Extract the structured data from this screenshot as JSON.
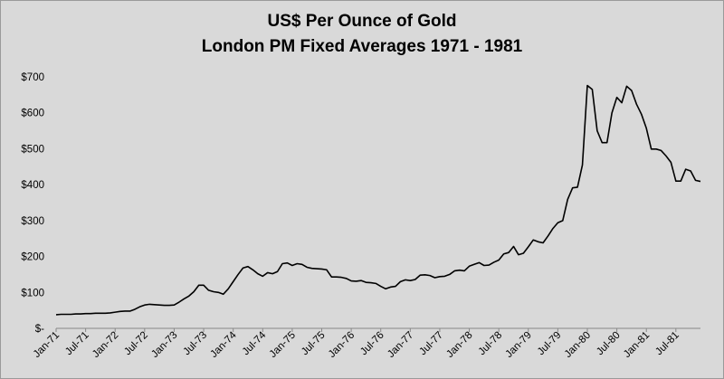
{
  "chart_data": {
    "type": "line",
    "title": "US$ Per Ounce of Gold",
    "subtitle": "London PM Fixed Averages 1971 - 1981",
    "xlabel": "",
    "ylabel": "",
    "ylim": [
      0,
      700
    ],
    "yticks": [
      {
        "value": 0,
        "label": "$-"
      },
      {
        "value": 100,
        "label": "$100"
      },
      {
        "value": 200,
        "label": "$200"
      },
      {
        "value": 300,
        "label": "$300"
      },
      {
        "value": 400,
        "label": "$400"
      },
      {
        "value": 500,
        "label": "$500"
      },
      {
        "value": 600,
        "label": "$600"
      },
      {
        "value": 700,
        "label": "$700"
      }
    ],
    "xticks": [
      {
        "index": 0,
        "label": "Jan-71"
      },
      {
        "index": 6,
        "label": "Jul-71"
      },
      {
        "index": 12,
        "label": "Jan-72"
      },
      {
        "index": 18,
        "label": "Jul-72"
      },
      {
        "index": 24,
        "label": "Jan-73"
      },
      {
        "index": 30,
        "label": "Jul-73"
      },
      {
        "index": 36,
        "label": "Jan-74"
      },
      {
        "index": 42,
        "label": "Jul-74"
      },
      {
        "index": 48,
        "label": "Jan-75"
      },
      {
        "index": 54,
        "label": "Jul-75"
      },
      {
        "index": 60,
        "label": "Jan-76"
      },
      {
        "index": 66,
        "label": "Jul-76"
      },
      {
        "index": 72,
        "label": "Jan-77"
      },
      {
        "index": 78,
        "label": "Jul-77"
      },
      {
        "index": 84,
        "label": "Jan-78"
      },
      {
        "index": 90,
        "label": "Jul-78"
      },
      {
        "index": 96,
        "label": "Jan-79"
      },
      {
        "index": 102,
        "label": "Jul-79"
      },
      {
        "index": 108,
        "label": "Jan-80"
      },
      {
        "index": 114,
        "label": "Jul-80"
      },
      {
        "index": 120,
        "label": "Jan-81"
      },
      {
        "index": 126,
        "label": "Jul-81"
      }
    ],
    "grid": false,
    "legend": "none",
    "x_start": "Jan-71",
    "x_end": "Dec-81",
    "series": [
      {
        "color": "#000000",
        "values": [
          38,
          39,
          39,
          39,
          40,
          40,
          41,
          41,
          42,
          42,
          42,
          43,
          45,
          47,
          48,
          48,
          53,
          60,
          65,
          67,
          66,
          65,
          64,
          64,
          65,
          73,
          82,
          90,
          102,
          120,
          120,
          106,
          102,
          100,
          95,
          110,
          130,
          150,
          168,
          172,
          163,
          152,
          145,
          155,
          152,
          158,
          180,
          182,
          175,
          180,
          178,
          170,
          167,
          166,
          165,
          163,
          143,
          143,
          142,
          139,
          132,
          131,
          133,
          128,
          127,
          125,
          117,
          110,
          115,
          117,
          130,
          135,
          133,
          136,
          148,
          149,
          147,
          141,
          144,
          145,
          150,
          160,
          162,
          160,
          173,
          178,
          183,
          175,
          176,
          184,
          190,
          207,
          211,
          228,
          205,
          209,
          227,
          246,
          241,
          238,
          257,
          278,
          294,
          300,
          359,
          391,
          393,
          455,
          676,
          665,
          550,
          517,
          517,
          600,
          643,
          628,
          674,
          662,
          624,
          596,
          557,
          499,
          499,
          495,
          480,
          462,
          410,
          410,
          443,
          438,
          412,
          409
        ]
      }
    ]
  }
}
